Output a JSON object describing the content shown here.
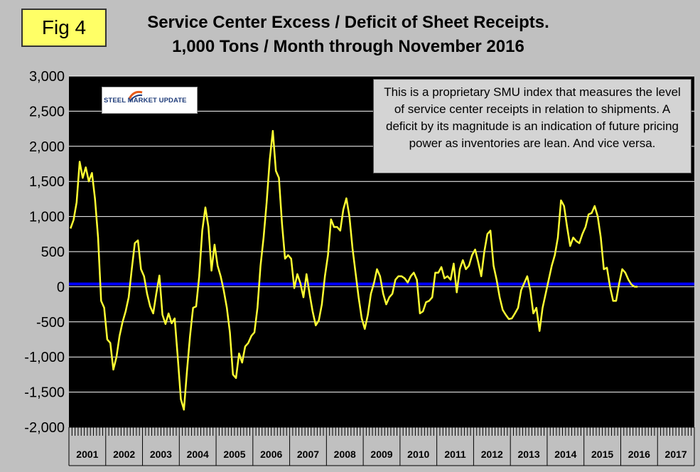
{
  "figure_label": "Fig 4",
  "title_line_1": "Service Center Excess / Deficit of Sheet Receipts.",
  "title_line_2": "1,000 Tons / Month through November 2016",
  "note_text": "This is a proprietary SMU index that measures the level of service center receipts in relation to shipments. A deficit by its magnitude is an indication of future pricing power as inventories are lean. And vice versa.",
  "logo_text": "STEEL MARKET UPDATE",
  "colors": {
    "plot_background": "#000000",
    "series_line": "#ffff33",
    "zero_line": "#0000ff",
    "gridline": "#ffffff",
    "page_background": "#c0c0c0"
  },
  "chart_data": {
    "type": "line",
    "title": "Service Center Excess / Deficit of Sheet Receipts. 1,000 Tons / Month through November 2016",
    "xlabel": "",
    "ylabel": "",
    "ylim": [
      -2000,
      3000
    ],
    "yticks": [
      3000,
      2500,
      2000,
      1500,
      1000,
      500,
      0,
      -500,
      -1000,
      -1500,
      -2000
    ],
    "ytick_labels": [
      "3,000",
      "2,500",
      "2,000",
      "1,500",
      "1,000",
      "500",
      "0",
      "-500",
      "-1,000",
      "-1,500",
      "-2,000"
    ],
    "categories": [
      "2001",
      "2002",
      "2003",
      "2004",
      "2005",
      "2006",
      "2007",
      "2008",
      "2009",
      "2010",
      "2011",
      "2012",
      "2013",
      "2014",
      "2015",
      "2016",
      "2017"
    ],
    "grid": "horizontal",
    "reference_line": 40,
    "series": [
      {
        "points": [
          [
            "2001-01",
            830
          ],
          [
            "2001-02",
            950
          ],
          [
            "2001-03",
            1200
          ],
          [
            "2001-04",
            1780
          ],
          [
            "2001-05",
            1550
          ],
          [
            "2001-06",
            1700
          ],
          [
            "2001-07",
            1500
          ],
          [
            "2001-08",
            1620
          ],
          [
            "2001-09",
            1250
          ],
          [
            "2001-10",
            700
          ],
          [
            "2001-11",
            -200
          ],
          [
            "2001-12",
            -300
          ],
          [
            "2002-01",
            -750
          ],
          [
            "2002-02",
            -800
          ],
          [
            "2002-03",
            -1180
          ],
          [
            "2002-04",
            -1000
          ],
          [
            "2002-05",
            -700
          ],
          [
            "2002-06",
            -500
          ],
          [
            "2002-07",
            -350
          ],
          [
            "2002-08",
            -150
          ],
          [
            "2002-09",
            250
          ],
          [
            "2002-10",
            620
          ],
          [
            "2002-11",
            660
          ],
          [
            "2002-12",
            250
          ],
          [
            "2003-01",
            150
          ],
          [
            "2003-02",
            -100
          ],
          [
            "2003-03",
            -280
          ],
          [
            "2003-04",
            -380
          ],
          [
            "2003-05",
            -100
          ],
          [
            "2003-06",
            160
          ],
          [
            "2003-07",
            -400
          ],
          [
            "2003-08",
            -530
          ],
          [
            "2003-09",
            -380
          ],
          [
            "2003-10",
            -520
          ],
          [
            "2003-11",
            -450
          ],
          [
            "2003-12",
            -1000
          ],
          [
            "2004-01",
            -1600
          ],
          [
            "2004-02",
            -1750
          ],
          [
            "2004-03",
            -1200
          ],
          [
            "2004-04",
            -700
          ],
          [
            "2004-05",
            -300
          ],
          [
            "2004-06",
            -280
          ],
          [
            "2004-07",
            150
          ],
          [
            "2004-08",
            800
          ],
          [
            "2004-09",
            1130
          ],
          [
            "2004-10",
            850
          ],
          [
            "2004-11",
            230
          ],
          [
            "2004-12",
            600
          ],
          [
            "2005-01",
            300
          ],
          [
            "2005-02",
            150
          ],
          [
            "2005-03",
            -50
          ],
          [
            "2005-04",
            -300
          ],
          [
            "2005-05",
            -650
          ],
          [
            "2005-06",
            -1250
          ],
          [
            "2005-07",
            -1300
          ],
          [
            "2005-08",
            -950
          ],
          [
            "2005-09",
            -1080
          ],
          [
            "2005-10",
            -850
          ],
          [
            "2005-11",
            -800
          ],
          [
            "2005-12",
            -700
          ],
          [
            "2006-01",
            -650
          ],
          [
            "2006-02",
            -300
          ],
          [
            "2006-03",
            300
          ],
          [
            "2006-04",
            700
          ],
          [
            "2006-05",
            1200
          ],
          [
            "2006-06",
            1800
          ],
          [
            "2006-07",
            2220
          ],
          [
            "2006-08",
            1650
          ],
          [
            "2006-09",
            1550
          ],
          [
            "2006-10",
            900
          ],
          [
            "2006-11",
            400
          ],
          [
            "2006-12",
            450
          ],
          [
            "2007-01",
            400
          ],
          [
            "2007-02",
            -20
          ],
          [
            "2007-03",
            180
          ],
          [
            "2007-04",
            50
          ],
          [
            "2007-05",
            -150
          ],
          [
            "2007-06",
            180
          ],
          [
            "2007-07",
            -100
          ],
          [
            "2007-08",
            -350
          ],
          [
            "2007-09",
            -550
          ],
          [
            "2007-10",
            -480
          ],
          [
            "2007-11",
            -250
          ],
          [
            "2007-12",
            150
          ],
          [
            "2008-01",
            450
          ],
          [
            "2008-02",
            960
          ],
          [
            "2008-03",
            850
          ],
          [
            "2008-04",
            850
          ],
          [
            "2008-05",
            800
          ],
          [
            "2008-06",
            1100
          ],
          [
            "2008-07",
            1260
          ],
          [
            "2008-08",
            1000
          ],
          [
            "2008-09",
            550
          ],
          [
            "2008-10",
            200
          ],
          [
            "2008-11",
            -150
          ],
          [
            "2008-12",
            -450
          ],
          [
            "2009-01",
            -600
          ],
          [
            "2009-02",
            -400
          ],
          [
            "2009-03",
            -100
          ],
          [
            "2009-04",
            50
          ],
          [
            "2009-05",
            250
          ],
          [
            "2009-06",
            150
          ],
          [
            "2009-07",
            -100
          ],
          [
            "2009-08",
            -250
          ],
          [
            "2009-09",
            -150
          ],
          [
            "2009-10",
            -100
          ],
          [
            "2009-11",
            100
          ],
          [
            "2009-12",
            150
          ],
          [
            "2010-01",
            150
          ],
          [
            "2010-02",
            120
          ],
          [
            "2010-03",
            60
          ],
          [
            "2010-04",
            150
          ],
          [
            "2010-05",
            200
          ],
          [
            "2010-06",
            100
          ],
          [
            "2010-07",
            -380
          ],
          [
            "2010-08",
            -350
          ],
          [
            "2010-09",
            -220
          ],
          [
            "2010-10",
            -200
          ],
          [
            "2010-11",
            -150
          ],
          [
            "2010-12",
            200
          ],
          [
            "2011-01",
            200
          ],
          [
            "2011-02",
            280
          ],
          [
            "2011-03",
            120
          ],
          [
            "2011-04",
            150
          ],
          [
            "2011-05",
            100
          ],
          [
            "2011-06",
            330
          ],
          [
            "2011-07",
            -80
          ],
          [
            "2011-08",
            250
          ],
          [
            "2011-09",
            380
          ],
          [
            "2011-10",
            250
          ],
          [
            "2011-11",
            300
          ],
          [
            "2011-12",
            450
          ],
          [
            "2012-01",
            530
          ],
          [
            "2012-02",
            350
          ],
          [
            "2012-03",
            150
          ],
          [
            "2012-04",
            500
          ],
          [
            "2012-05",
            750
          ],
          [
            "2012-06",
            800
          ],
          [
            "2012-07",
            300
          ],
          [
            "2012-08",
            100
          ],
          [
            "2012-09",
            -150
          ],
          [
            "2012-10",
            -330
          ],
          [
            "2012-11",
            -400
          ],
          [
            "2012-12",
            -460
          ],
          [
            "2013-01",
            -450
          ],
          [
            "2013-02",
            -380
          ],
          [
            "2013-03",
            -300
          ],
          [
            "2013-04",
            -50
          ],
          [
            "2013-05",
            50
          ],
          [
            "2013-06",
            150
          ],
          [
            "2013-07",
            -50
          ],
          [
            "2013-08",
            -380
          ],
          [
            "2013-09",
            -300
          ],
          [
            "2013-10",
            -630
          ],
          [
            "2013-11",
            -300
          ],
          [
            "2013-12",
            -100
          ],
          [
            "2014-01",
            100
          ],
          [
            "2014-02",
            300
          ],
          [
            "2014-03",
            450
          ],
          [
            "2014-04",
            700
          ],
          [
            "2014-05",
            1230
          ],
          [
            "2014-06",
            1150
          ],
          [
            "2014-07",
            850
          ],
          [
            "2014-08",
            580
          ],
          [
            "2014-09",
            700
          ],
          [
            "2014-10",
            650
          ],
          [
            "2014-11",
            620
          ],
          [
            "2014-12",
            750
          ],
          [
            "2015-01",
            850
          ],
          [
            "2015-02",
            1030
          ],
          [
            "2015-03",
            1050
          ],
          [
            "2015-04",
            1150
          ],
          [
            "2015-05",
            1000
          ],
          [
            "2015-06",
            700
          ],
          [
            "2015-07",
            250
          ],
          [
            "2015-08",
            270
          ],
          [
            "2015-09",
            0
          ],
          [
            "2015-10",
            -200
          ],
          [
            "2015-11",
            -200
          ],
          [
            "2015-12",
            50
          ],
          [
            "2016-01",
            250
          ],
          [
            "2016-02",
            200
          ],
          [
            "2016-03",
            100
          ],
          [
            "2016-04",
            30
          ],
          [
            "2016-05",
            0
          ],
          [
            "2016-06",
            0
          ]
        ]
      }
    ]
  }
}
